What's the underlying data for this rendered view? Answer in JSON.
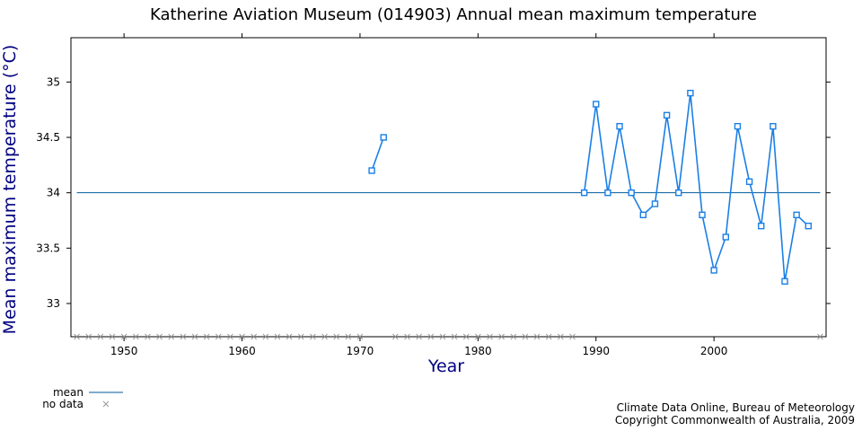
{
  "chart_data": {
    "type": "line",
    "title": "Katherine Aviation Museum (014903) Annual mean maximum temperature",
    "xlabel": "Year",
    "ylabel": "Mean maximum temperature (°C)",
    "xlim": [
      1945.5,
      2009.5
    ],
    "ylim": [
      32.7,
      35.4
    ],
    "x_ticks": [
      1950,
      1960,
      1970,
      1980,
      1990,
      2000
    ],
    "y_ticks": [
      33,
      33.5,
      34,
      34.5,
      35
    ],
    "y_tick_labels": [
      "33",
      "33.5",
      "34",
      "34.5",
      "35"
    ],
    "grid": false,
    "series": [
      {
        "points": [
          [
            1971,
            34.2
          ],
          [
            1972,
            34.5
          ],
          [
            1989,
            34.0
          ],
          [
            1990,
            34.8
          ],
          [
            1991,
            34.0
          ],
          [
            1992,
            34.6
          ],
          [
            1993,
            34.0
          ],
          [
            1994,
            33.8
          ],
          [
            1995,
            33.9
          ],
          [
            1996,
            34.7
          ],
          [
            1997,
            34.0
          ],
          [
            1998,
            34.9
          ],
          [
            1999,
            33.8
          ],
          [
            2000,
            33.3
          ],
          [
            2001,
            33.6
          ],
          [
            2002,
            34.6
          ],
          [
            2003,
            34.1
          ],
          [
            2004,
            33.7
          ],
          [
            2005,
            34.6
          ],
          [
            2006,
            33.2
          ],
          [
            2007,
            33.8
          ],
          [
            2008,
            33.7
          ]
        ],
        "color": "#1a7fe5"
      }
    ],
    "mean": {
      "value": 34.0,
      "x_start": 1946,
      "x_end": 2009,
      "color": "#005a9c"
    },
    "no_data_years": [
      1946,
      1947,
      1948,
      1949,
      1950,
      1951,
      1952,
      1953,
      1954,
      1955,
      1956,
      1957,
      1958,
      1959,
      1960,
      1961,
      1962,
      1963,
      1964,
      1965,
      1966,
      1967,
      1968,
      1969,
      1970,
      1973,
      1974,
      1975,
      1976,
      1977,
      1978,
      1979,
      1980,
      1981,
      1982,
      1983,
      1984,
      1985,
      1986,
      1987,
      1988,
      2009
    ],
    "legend": {
      "position": "bottom-left",
      "items": [
        {
          "label": "mean",
          "marker": "line",
          "color": "#005a9c"
        },
        {
          "label": "no data",
          "marker": "x",
          "color": "#999999"
        }
      ]
    },
    "credit": [
      "Climate Data Online, Bureau of Meteorology",
      "Copyright Commonwealth of Australia, 2009"
    ]
  }
}
